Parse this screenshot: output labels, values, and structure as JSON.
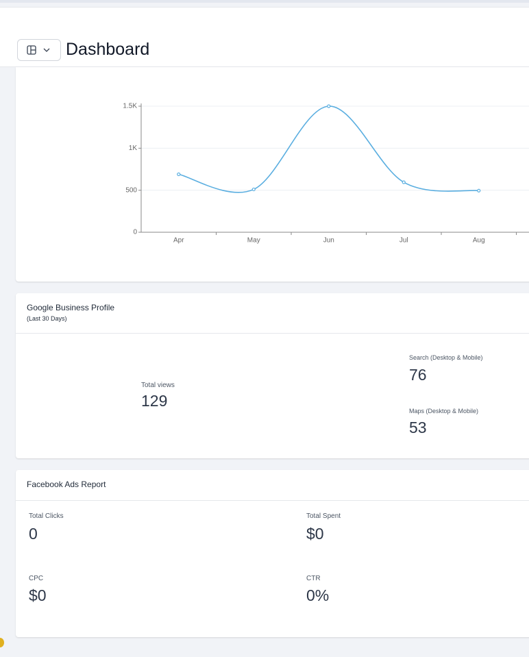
{
  "header": {
    "title": "Dashboard"
  },
  "chart_data": {
    "type": "line",
    "categories": [
      "Apr",
      "May",
      "Jun",
      "Jul",
      "Aug"
    ],
    "series": [
      {
        "color": "#5aaee0",
        "values": [
          690,
          510,
          1500,
          595,
          495
        ]
      }
    ],
    "ylim": [
      0,
      1500
    ],
    "yticks": [
      0,
      500,
      {
        "value": 1000,
        "label": "1K"
      },
      {
        "value": 1500,
        "label": "1.5K"
      }
    ],
    "grid": true
  },
  "google_card": {
    "title": "Google Business Profile",
    "subtitle": "(Last 30 Days)",
    "total": {
      "label": "Total views",
      "value": "129"
    },
    "search": {
      "label": "Search (Desktop & Mobile)",
      "value": "76"
    },
    "maps": {
      "label": "Maps (Desktop & Mobile)",
      "value": "53"
    }
  },
  "facebook_card": {
    "title": "Facebook Ads Report",
    "metrics": [
      {
        "label": "Total Clicks",
        "value": "0"
      },
      {
        "label": "Total Spent",
        "value": "$0"
      },
      {
        "label": "CPC",
        "value": "$0"
      },
      {
        "label": "CTR",
        "value": "0%"
      }
    ]
  }
}
